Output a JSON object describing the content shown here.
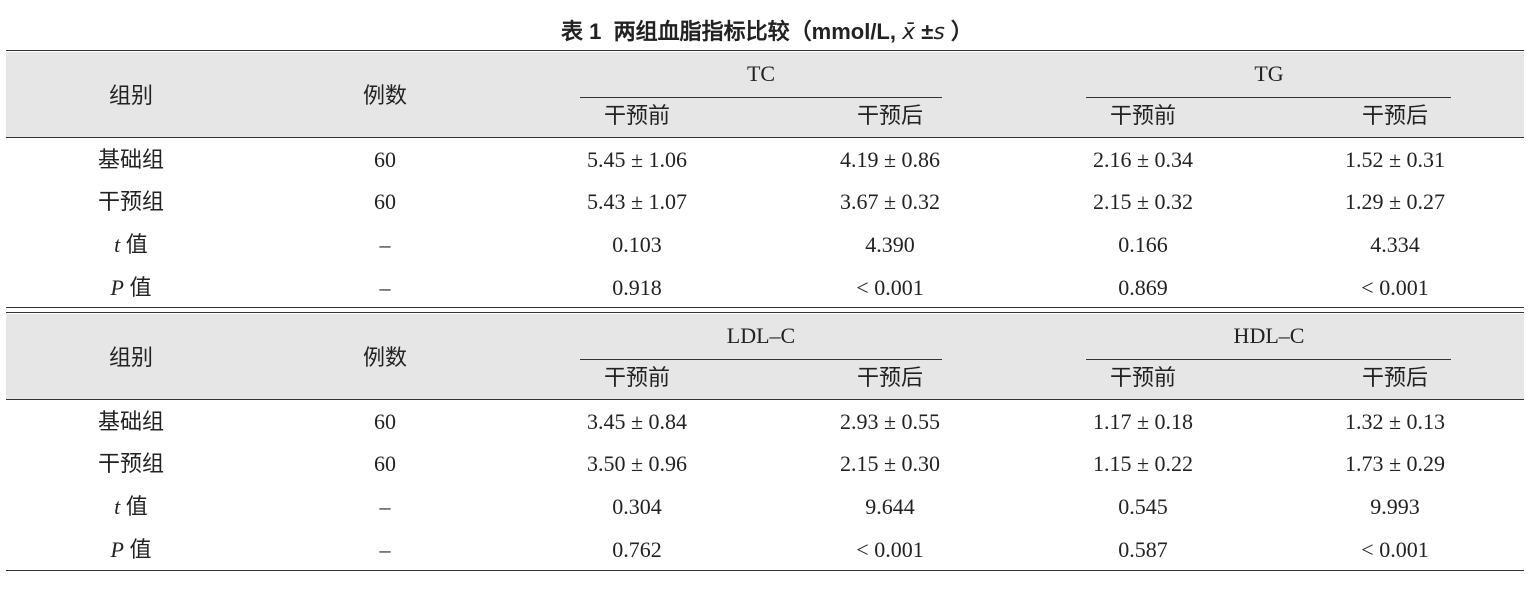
{
  "title": {
    "label": "表 1",
    "text": "两组血脂指标比较（mmol/L, ",
    "mean": "x̄",
    "pm": "±",
    "sd": "s",
    "close": "）"
  },
  "tables": [
    {
      "header": {
        "group": "组别",
        "n": "例数",
        "measures": [
          {
            "name": "TC",
            "cols": [
              "干预前",
              "干预后"
            ]
          },
          {
            "name": "TG",
            "cols": [
              "干预前",
              "干预后"
            ]
          }
        ]
      },
      "rows": [
        {
          "label": {
            "text": "基础组"
          },
          "n": "60",
          "cells": [
            "5.45 ± 1.06",
            "4.19 ± 0.86",
            "2.16 ± 0.34",
            "1.52 ± 0.31"
          ]
        },
        {
          "label": {
            "text": "干预组"
          },
          "n": "60",
          "cells": [
            "5.43 ± 1.07",
            "3.67 ± 0.32",
            "2.15 ± 0.32",
            "1.29 ± 0.27"
          ]
        },
        {
          "label": {
            "symbol": "t",
            "text": "值"
          },
          "n": "–",
          "cells": [
            "0.103",
            "4.390",
            "0.166",
            "4.334"
          ]
        },
        {
          "label": {
            "symbol": "P",
            "text": "值"
          },
          "n": "–",
          "cells": [
            "0.918",
            "< 0.001",
            "0.869",
            "< 0.001"
          ]
        }
      ]
    },
    {
      "header": {
        "group": "组别",
        "n": "例数",
        "measures": [
          {
            "name": "LDL–C",
            "cols": [
              "干预前",
              "干预后"
            ]
          },
          {
            "name": "HDL–C",
            "cols": [
              "干预前",
              "干预后"
            ]
          }
        ]
      },
      "rows": [
        {
          "label": {
            "text": "基础组"
          },
          "n": "60",
          "cells": [
            "3.45 ± 0.84",
            "2.93 ± 0.55",
            "1.17 ± 0.18",
            "1.32 ± 0.13"
          ]
        },
        {
          "label": {
            "text": "干预组"
          },
          "n": "60",
          "cells": [
            "3.50 ± 0.96",
            "2.15 ± 0.30",
            "1.15 ± 0.22",
            "1.73 ± 0.29"
          ]
        },
        {
          "label": {
            "symbol": "t",
            "text": "值"
          },
          "n": "–",
          "cells": [
            "0.304",
            "9.644",
            "0.545",
            "9.993"
          ]
        },
        {
          "label": {
            "symbol": "P",
            "text": "值"
          },
          "n": "–",
          "cells": [
            "0.762",
            "< 0.001",
            "0.587",
            "< 0.001"
          ]
        }
      ]
    }
  ]
}
